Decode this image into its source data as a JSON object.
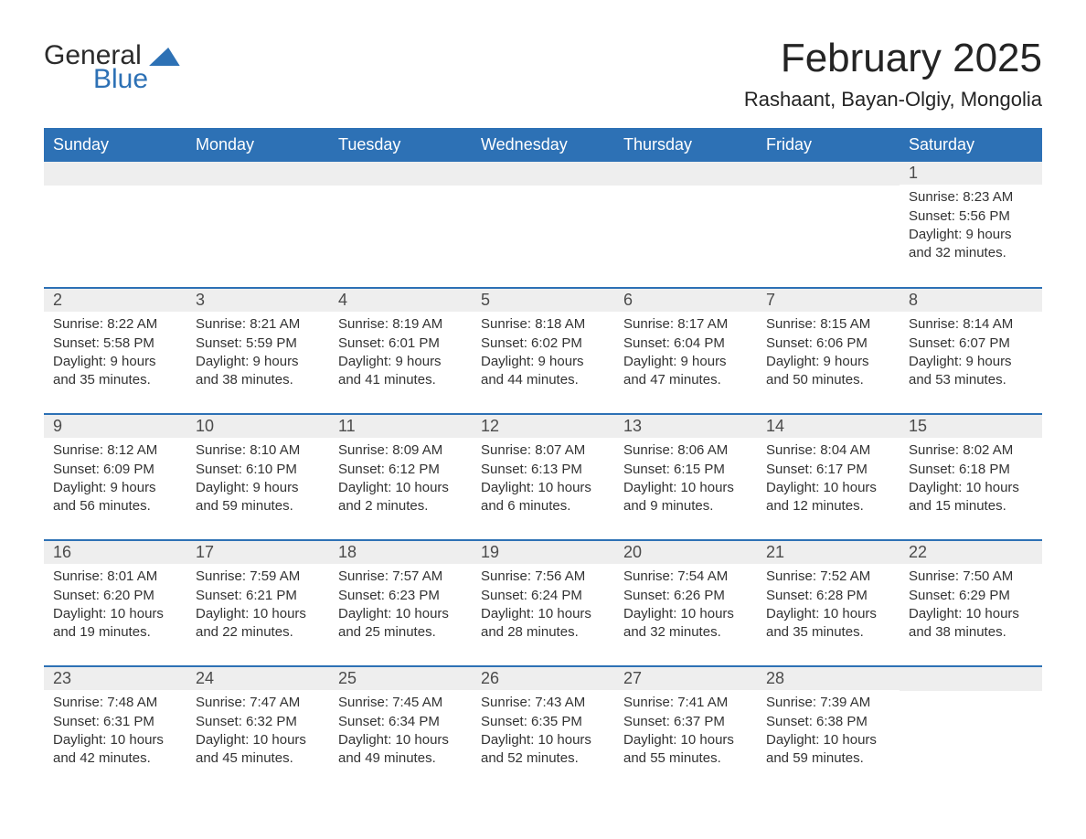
{
  "brand": {
    "name1": "General",
    "name2": "Blue",
    "accent": "#2d71b5"
  },
  "title": "February 2025",
  "location": "Rashaant, Bayan-Olgiy, Mongolia",
  "weekdays": [
    "Sunday",
    "Monday",
    "Tuesday",
    "Wednesday",
    "Thursday",
    "Friday",
    "Saturday"
  ],
  "colors": {
    "header_bg": "#2d71b5",
    "header_fg": "#ffffff",
    "daynum_bg": "#eeeeee",
    "text": "#333333",
    "row_border": "#2d71b5",
    "page_bg": "#ffffff"
  },
  "typography": {
    "title_fontsize": 44,
    "location_fontsize": 22,
    "weekday_fontsize": 18,
    "daynum_fontsize": 18,
    "body_fontsize": 15
  },
  "layout": {
    "columns": 7,
    "rows": 5,
    "leading_blank_cells": 6,
    "trailing_blank_cells": 1
  },
  "days": [
    {
      "n": 1,
      "sunrise": "8:23 AM",
      "sunset": "5:56 PM",
      "daylight": "9 hours and 32 minutes."
    },
    {
      "n": 2,
      "sunrise": "8:22 AM",
      "sunset": "5:58 PM",
      "daylight": "9 hours and 35 minutes."
    },
    {
      "n": 3,
      "sunrise": "8:21 AM",
      "sunset": "5:59 PM",
      "daylight": "9 hours and 38 minutes."
    },
    {
      "n": 4,
      "sunrise": "8:19 AM",
      "sunset": "6:01 PM",
      "daylight": "9 hours and 41 minutes."
    },
    {
      "n": 5,
      "sunrise": "8:18 AM",
      "sunset": "6:02 PM",
      "daylight": "9 hours and 44 minutes."
    },
    {
      "n": 6,
      "sunrise": "8:17 AM",
      "sunset": "6:04 PM",
      "daylight": "9 hours and 47 minutes."
    },
    {
      "n": 7,
      "sunrise": "8:15 AM",
      "sunset": "6:06 PM",
      "daylight": "9 hours and 50 minutes."
    },
    {
      "n": 8,
      "sunrise": "8:14 AM",
      "sunset": "6:07 PM",
      "daylight": "9 hours and 53 minutes."
    },
    {
      "n": 9,
      "sunrise": "8:12 AM",
      "sunset": "6:09 PM",
      "daylight": "9 hours and 56 minutes."
    },
    {
      "n": 10,
      "sunrise": "8:10 AM",
      "sunset": "6:10 PM",
      "daylight": "9 hours and 59 minutes."
    },
    {
      "n": 11,
      "sunrise": "8:09 AM",
      "sunset": "6:12 PM",
      "daylight": "10 hours and 2 minutes."
    },
    {
      "n": 12,
      "sunrise": "8:07 AM",
      "sunset": "6:13 PM",
      "daylight": "10 hours and 6 minutes."
    },
    {
      "n": 13,
      "sunrise": "8:06 AM",
      "sunset": "6:15 PM",
      "daylight": "10 hours and 9 minutes."
    },
    {
      "n": 14,
      "sunrise": "8:04 AM",
      "sunset": "6:17 PM",
      "daylight": "10 hours and 12 minutes."
    },
    {
      "n": 15,
      "sunrise": "8:02 AM",
      "sunset": "6:18 PM",
      "daylight": "10 hours and 15 minutes."
    },
    {
      "n": 16,
      "sunrise": "8:01 AM",
      "sunset": "6:20 PM",
      "daylight": "10 hours and 19 minutes."
    },
    {
      "n": 17,
      "sunrise": "7:59 AM",
      "sunset": "6:21 PM",
      "daylight": "10 hours and 22 minutes."
    },
    {
      "n": 18,
      "sunrise": "7:57 AM",
      "sunset": "6:23 PM",
      "daylight": "10 hours and 25 minutes."
    },
    {
      "n": 19,
      "sunrise": "7:56 AM",
      "sunset": "6:24 PM",
      "daylight": "10 hours and 28 minutes."
    },
    {
      "n": 20,
      "sunrise": "7:54 AM",
      "sunset": "6:26 PM",
      "daylight": "10 hours and 32 minutes."
    },
    {
      "n": 21,
      "sunrise": "7:52 AM",
      "sunset": "6:28 PM",
      "daylight": "10 hours and 35 minutes."
    },
    {
      "n": 22,
      "sunrise": "7:50 AM",
      "sunset": "6:29 PM",
      "daylight": "10 hours and 38 minutes."
    },
    {
      "n": 23,
      "sunrise": "7:48 AM",
      "sunset": "6:31 PM",
      "daylight": "10 hours and 42 minutes."
    },
    {
      "n": 24,
      "sunrise": "7:47 AM",
      "sunset": "6:32 PM",
      "daylight": "10 hours and 45 minutes."
    },
    {
      "n": 25,
      "sunrise": "7:45 AM",
      "sunset": "6:34 PM",
      "daylight": "10 hours and 49 minutes."
    },
    {
      "n": 26,
      "sunrise": "7:43 AM",
      "sunset": "6:35 PM",
      "daylight": "10 hours and 52 minutes."
    },
    {
      "n": 27,
      "sunrise": "7:41 AM",
      "sunset": "6:37 PM",
      "daylight": "10 hours and 55 minutes."
    },
    {
      "n": 28,
      "sunrise": "7:39 AM",
      "sunset": "6:38 PM",
      "daylight": "10 hours and 59 minutes."
    }
  ],
  "labels": {
    "sunrise": "Sunrise:",
    "sunset": "Sunset:",
    "daylight": "Daylight:"
  }
}
